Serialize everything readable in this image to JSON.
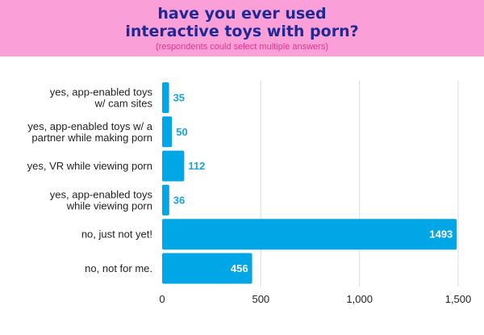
{
  "header": {
    "title": "have you ever used interactive toys with porn?",
    "subtitle": "(respondents could select multiple answers)"
  },
  "colors": {
    "header_bg": "#fb9fd9",
    "title": "#1e2a94",
    "subtitle": "#e8338f",
    "bar": "#00a6e6",
    "value_label_outside": "#1aa3db",
    "value_label_inside": "#ffffff",
    "grid": "#dcdcdc"
  },
  "chart_data": {
    "type": "bar",
    "orientation": "horizontal",
    "categories": [
      [
        "yes, app-enabled toys",
        "w/ cam sites"
      ],
      [
        "yes, app-enabled toys w/ a",
        "partner while making porn"
      ],
      [
        "yes, VR while viewing porn"
      ],
      [
        "yes, app-enabled toys",
        "while viewing porn"
      ],
      [
        "no, just not yet!"
      ],
      [
        "no, not for me."
      ]
    ],
    "values": [
      35,
      50,
      112,
      36,
      1493,
      456
    ],
    "value_labels": [
      "35",
      "50",
      "112",
      "36",
      "1493",
      "456"
    ],
    "xlim": [
      0,
      1500
    ],
    "xticks": [
      0,
      500,
      1000,
      1500
    ],
    "xtick_labels": [
      "0",
      "500",
      "1,000",
      "1,500"
    ],
    "grid": true
  }
}
